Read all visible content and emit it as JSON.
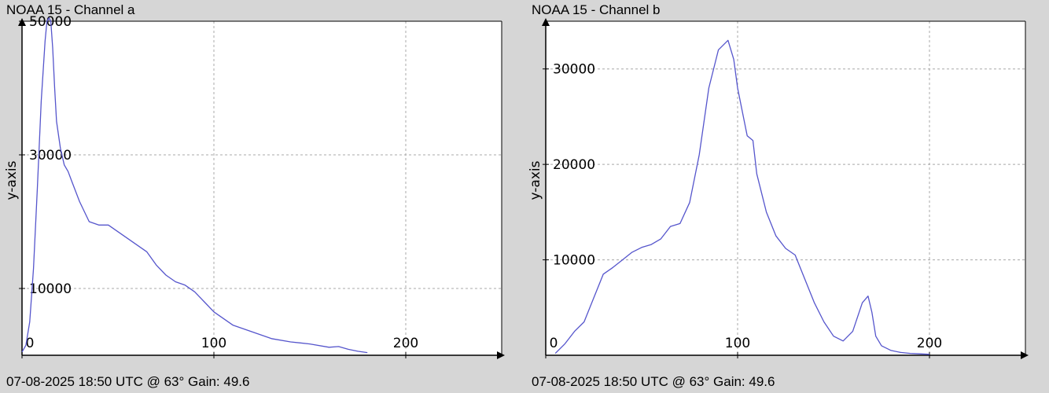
{
  "chart_data": [
    {
      "type": "line",
      "title": "NOAA 15 - Channel a",
      "footer": "07-08-2025 18:50 UTC @ 63° Gain: 49.6",
      "xlabel": "",
      "ylabel": "y-axis",
      "xlim": [
        0,
        250
      ],
      "ylim": [
        0,
        50000
      ],
      "xticks": [
        0,
        100,
        200
      ],
      "yticks": [
        10000,
        30000,
        50000
      ],
      "grid": true,
      "line_color": "#5555cc",
      "series": [
        {
          "x": [
            0,
            2,
            4,
            6,
            8,
            10,
            12,
            13,
            14,
            15,
            16,
            17,
            18,
            20,
            22,
            24,
            26,
            30,
            35,
            40,
            45,
            50,
            55,
            60,
            65,
            70,
            75,
            80,
            85,
            90,
            95,
            100,
            105,
            110,
            120,
            130,
            140,
            150,
            160,
            165,
            170,
            175,
            180
          ],
          "y": [
            500,
            1500,
            5000,
            13000,
            25000,
            38000,
            47000,
            50000,
            50500,
            50000,
            46000,
            40000,
            35000,
            31000,
            28500,
            27500,
            26000,
            23000,
            20000,
            19500,
            19500,
            18500,
            17500,
            16500,
            15500,
            13500,
            12000,
            11000,
            10500,
            9500,
            8000,
            6500,
            5500,
            4500,
            3500,
            2500,
            2000,
            1700,
            1200,
            1300,
            900,
            600,
            400
          ]
        }
      ]
    },
    {
      "type": "line",
      "title": "NOAA 15 - Channel b",
      "footer": "07-08-2025 18:50 UTC @ 63° Gain: 49.6",
      "xlabel": "",
      "ylabel": "y-axis",
      "xlim": [
        0,
        250
      ],
      "ylim": [
        0,
        35000
      ],
      "xticks": [
        0,
        100,
        200
      ],
      "yticks": [
        10000,
        20000,
        30000
      ],
      "grid": true,
      "line_color": "#5555cc",
      "series": [
        {
          "x": [
            5,
            10,
            15,
            20,
            25,
            30,
            35,
            40,
            45,
            50,
            55,
            60,
            65,
            70,
            75,
            80,
            85,
            90,
            95,
            98,
            100,
            103,
            105,
            108,
            110,
            115,
            120,
            125,
            130,
            135,
            140,
            145,
            150,
            155,
            160,
            165,
            168,
            170,
            172,
            175,
            180,
            185,
            190,
            195,
            200
          ],
          "y": [
            200,
            1200,
            2500,
            3500,
            6000,
            8500,
            9200,
            10000,
            10800,
            11300,
            11600,
            12200,
            13500,
            13800,
            16000,
            21000,
            28000,
            32000,
            33000,
            31000,
            28000,
            25000,
            23000,
            22500,
            19000,
            15000,
            12500,
            11200,
            10500,
            8000,
            5500,
            3500,
            2000,
            1500,
            2500,
            5500,
            6200,
            4500,
            2000,
            1000,
            500,
            300,
            200,
            150,
            100
          ]
        }
      ]
    }
  ]
}
